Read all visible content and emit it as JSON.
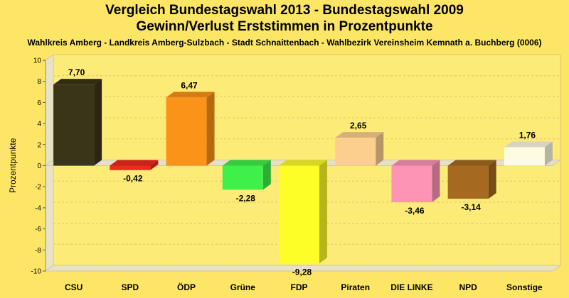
{
  "chart_data": {
    "type": "bar",
    "title": "Vergleich Bundestagswahl 2013 - Bundestagswahl 2009",
    "title_line2": "Gewinn/Verlust Erststimmen in Prozentpunkte",
    "subtitle": "Wahlkreis Amberg - Landkreis Amberg-Sulzbach - Stadt Schnaittenbach - Wahlbezirk Vereinsheim Kemnath a. Buchberg (0006)",
    "xlabel": "",
    "ylabel": "Prozentpunkte",
    "ylim": [
      -10,
      10
    ],
    "yticks": [
      "10",
      "8",
      "6",
      "4",
      "2",
      "0",
      "-2",
      "-4",
      "-6",
      "-8",
      "-10"
    ],
    "grid": true,
    "categories": [
      "CSU",
      "SPD",
      "ÖDP",
      "Grüne",
      "FDP",
      "Piraten",
      "DIE LINKE",
      "NPD",
      "Sonstige"
    ],
    "values": [
      7.7,
      -0.42,
      6.47,
      -2.28,
      -9.28,
      2.65,
      -3.46,
      -3.14,
      1.76
    ],
    "value_labels": [
      "7,70",
      "-0,42",
      "6,47",
      "-2,28",
      "-9,28",
      "2,65",
      "-3,46",
      "-3,14",
      "1,76"
    ],
    "colors": [
      "#3a3519",
      "#ee2a1c",
      "#fb9318",
      "#3ef049",
      "#fdfd27",
      "#fdcf8e",
      "#fd94b6",
      "#a56a20",
      "#fdfbe2"
    ],
    "background": "#fde665"
  }
}
